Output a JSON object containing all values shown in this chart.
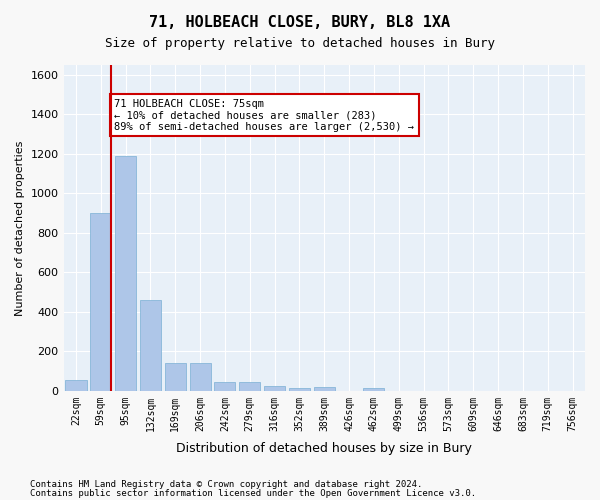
{
  "title": "71, HOLBEACH CLOSE, BURY, BL8 1XA",
  "subtitle": "Size of property relative to detached houses in Bury",
  "xlabel": "Distribution of detached houses by size in Bury",
  "ylabel": "Number of detached properties",
  "footnote1": "Contains HM Land Registry data © Crown copyright and database right 2024.",
  "footnote2": "Contains public sector information licensed under the Open Government Licence v3.0.",
  "annotation_line1": "71 HOLBEACH CLOSE: 75sqm",
  "annotation_line2": "← 10% of detached houses are smaller (283)",
  "annotation_line3": "89% of semi-detached houses are larger (2,530) →",
  "categories": [
    "22sqm",
    "59sqm",
    "95sqm",
    "132sqm",
    "169sqm",
    "206sqm",
    "242sqm",
    "279sqm",
    "316sqm",
    "352sqm",
    "389sqm",
    "426sqm",
    "462sqm",
    "499sqm",
    "536sqm",
    "573sqm",
    "609sqm",
    "646sqm",
    "683sqm",
    "719sqm",
    "756sqm"
  ],
  "values": [
    55,
    900,
    1190,
    460,
    140,
    140,
    45,
    45,
    25,
    15,
    20,
    0,
    15,
    0,
    0,
    0,
    0,
    0,
    0,
    0,
    0
  ],
  "bar_color": "#aec6e8",
  "bar_edge_color": "#7aafd4",
  "vline_x": 1,
  "vline_color": "#cc0000",
  "annotation_box_edge": "#cc0000",
  "background_color": "#e8f0f8",
  "ylim": [
    0,
    1650
  ],
  "yticks": [
    0,
    200,
    400,
    600,
    800,
    1000,
    1200,
    1400,
    1600
  ]
}
